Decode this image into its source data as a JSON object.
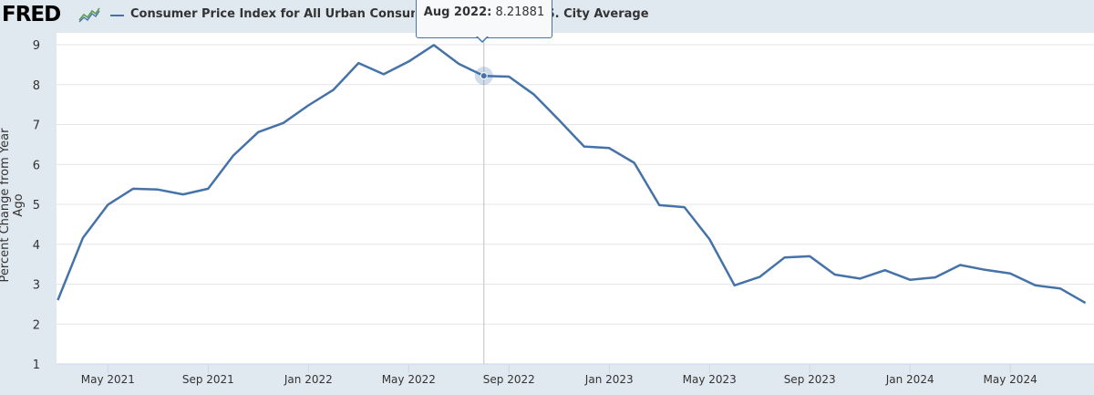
{
  "header": {
    "logo_text": "FRED",
    "title": "Consumer Price Index for All Urban Consumers: All Items in U.S. City Average",
    "tooltip_date": "Aug 2022:",
    "tooltip_value": "8.21881"
  },
  "colors": {
    "series": "#4572a7",
    "background": "#e1e9f0",
    "plot_background": "#ffffff",
    "grid": "#e6e6e6",
    "logo_chart_green": "#5a9e4b"
  },
  "chart_data": {
    "type": "line",
    "title": "Consumer Price Index for All Urban Consumers: All Items in U.S. City Average",
    "ylabel": "Percent Change from Year Ago",
    "xlabel": "",
    "ylim": [
      1,
      9
    ],
    "yticks": [
      "1",
      "2",
      "3",
      "4",
      "5",
      "6",
      "7",
      "8",
      "9"
    ],
    "xticks": [
      "May 2021",
      "Sep 2021",
      "Jan 2022",
      "May 2022",
      "Sep 2022",
      "Jan 2023",
      "May 2023",
      "Sep 2023",
      "Jan 2024",
      "May 2024"
    ],
    "grid": true,
    "x": [
      "2021-03",
      "2021-04",
      "2021-05",
      "2021-06",
      "2021-07",
      "2021-08",
      "2021-09",
      "2021-10",
      "2021-11",
      "2021-12",
      "2022-01",
      "2022-02",
      "2022-03",
      "2022-04",
      "2022-05",
      "2022-06",
      "2022-07",
      "2022-08",
      "2022-09",
      "2022-10",
      "2022-11",
      "2022-12",
      "2023-01",
      "2023-02",
      "2023-03",
      "2023-04",
      "2023-05",
      "2023-06",
      "2023-07",
      "2023-08",
      "2023-09",
      "2023-10",
      "2023-11",
      "2023-12",
      "2024-01",
      "2024-02",
      "2024-03",
      "2024-04",
      "2024-05",
      "2024-06",
      "2024-07",
      "2024-08"
    ],
    "series": [
      {
        "name": "",
        "values": [
          2.6,
          4.16,
          4.99,
          5.39,
          5.37,
          5.25,
          5.39,
          6.22,
          6.81,
          7.04,
          7.48,
          7.87,
          8.54,
          8.26,
          8.58,
          8.99,
          8.52,
          8.21881,
          8.2,
          7.75,
          7.11,
          6.45,
          6.41,
          6.04,
          4.98,
          4.93,
          4.13,
          2.97,
          3.18,
          3.67,
          3.7,
          3.24,
          3.14,
          3.35,
          3.11,
          3.17,
          3.48,
          3.36,
          3.27,
          2.97,
          2.89,
          2.53
        ]
      }
    ],
    "highlight_index": 17
  }
}
